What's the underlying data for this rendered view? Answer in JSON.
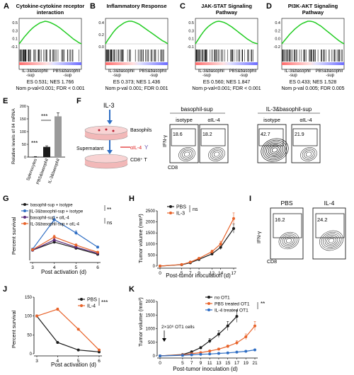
{
  "gsea": [
    {
      "letter": "A",
      "title_lines": [
        "Cytokine-cytokine receptor",
        "interaction"
      ],
      "left": [
        "IL-3&basophil",
        "-sup"
      ],
      "right": [
        "PBS&basophil",
        "-sup"
      ],
      "stats1": "ES 0.531; NES 1.766",
      "stats2": "Nom p-val<0.001; FDR < 0.001",
      "yticks": [
        "0.5",
        "0.3",
        "0.1",
        "-0.1"
      ],
      "curve": [
        0,
        0.08,
        0.16,
        0.23,
        0.3,
        0.36,
        0.41,
        0.45,
        0.49,
        0.51,
        0.53,
        0.52,
        0.5,
        0.47,
        0.44,
        0.4,
        0.36,
        0.31,
        0.26,
        0.21,
        0.16,
        0.11,
        0.07,
        0.03,
        0
      ]
    },
    {
      "letter": "B",
      "title_lines": [
        "Inflammatory Response"
      ],
      "left": [
        "IL-3&basophil",
        "-sup"
      ],
      "right": [
        "PBS&basophil",
        "-sup"
      ],
      "stats1": "ES 0.373; NES 1.436",
      "stats2": "Nom p-val 0.001; FDR 0.001",
      "yticks": [
        "0.4",
        "0.2",
        "0.0"
      ],
      "curve": [
        0,
        0.07,
        0.13,
        0.19,
        0.24,
        0.28,
        0.31,
        0.34,
        0.36,
        0.37,
        0.37,
        0.36,
        0.34,
        0.32,
        0.29,
        0.26,
        0.23,
        0.2,
        0.17,
        0.14,
        0.11,
        0.08,
        0.05,
        0.03,
        0
      ]
    },
    {
      "letter": "C",
      "title_lines": [
        "JAK-STAT Signaling",
        "Pathway"
      ],
      "left": [
        "IL-3&basophil",
        "-sup"
      ],
      "right": [
        "PBS&basophil",
        "-sup"
      ],
      "stats1": "ES 0.560; NES 1.847",
      "stats2": "Nom p-val<0.001; FDR < 0.001",
      "yticks": [
        "0.5",
        "0.3",
        "0.1",
        "-0.1"
      ],
      "curve": [
        0,
        0.1,
        0.2,
        0.29,
        0.37,
        0.43,
        0.48,
        0.52,
        0.55,
        0.56,
        0.55,
        0.53,
        0.5,
        0.46,
        0.42,
        0.37,
        0.32,
        0.27,
        0.22,
        0.17,
        0.12,
        0.08,
        0.04,
        0.02,
        0
      ]
    },
    {
      "letter": "D",
      "title_lines": [
        "PI3K-AKT Signaling",
        "Pathway"
      ],
      "left": [
        "IL-3&basophil",
        "-sup"
      ],
      "right": [
        "PBS&basophil",
        "-sup"
      ],
      "stats1": "ES 0.433; NES 1.528",
      "stats2": "Nom p-val 0.005; FDR 0.005",
      "yticks": [
        "0.4",
        "0.2",
        "0.0",
        "-0.2"
      ],
      "curve": [
        0,
        0.06,
        0.12,
        0.18,
        0.23,
        0.28,
        0.32,
        0.36,
        0.39,
        0.41,
        0.43,
        0.43,
        0.42,
        0.4,
        0.37,
        0.34,
        0.3,
        0.26,
        0.22,
        0.18,
        0.14,
        0.1,
        0.06,
        0.03,
        0
      ]
    }
  ],
  "panel_e": {
    "letter": "E",
    "ylabel": "Relative levels of Il4 mRNA",
    "yticks": [
      "200",
      "150",
      "100",
      "50",
      "0"
    ],
    "bars": [
      {
        "label": "Splenocytes",
        "value": 1
      },
      {
        "label": "PBS&basophil",
        "value": 40
      },
      {
        "label": "IL-3&basophil",
        "value": 160
      }
    ],
    "sig": [
      "***",
      "***"
    ]
  },
  "panel_f": {
    "letter": "F",
    "il3": "IL-3",
    "basophils": "Basophils",
    "supernatant": "Supernatant",
    "ail4": "αIL-4",
    "cd8t": "CD8⁺ T",
    "group1": "basophil-sup",
    "group2": "IL-3&basophil-sup",
    "subs": [
      "isotype",
      "αIL-4",
      "isotype",
      "αIL-4"
    ],
    "values": [
      "18.6",
      "18.2",
      "42.7",
      "21.9"
    ],
    "ylabel": "IFN-γ",
    "xlabel": "CD8"
  },
  "panel_g": {
    "letter": "G",
    "ylabel": "Percent survival",
    "xlabel": "Post activation (d)",
    "xticks": [
      "3",
      "4",
      "5",
      "6"
    ],
    "legend": [
      "basophil-sup + isolype",
      "IL-3&basophil-sup + isotype",
      "basophil-sup + αIL-4",
      "IL-3&basophil-sup + αIL-4"
    ],
    "sig1": "**",
    "sig2": "ns"
  },
  "panel_h": {
    "letter": "H",
    "ylabel": "Tumor volume (mm³)",
    "xlabel": "Post-tumor inoculation (d)",
    "xticks": [
      "0",
      "5",
      "7",
      "9",
      "12",
      "14",
      "17"
    ],
    "yticks": [
      "2500",
      "2000",
      "1500",
      "1000",
      "500",
      "0"
    ],
    "legend": [
      "PBS",
      "IL-3"
    ],
    "sig": "ns"
  },
  "panel_i": {
    "letter": "I",
    "groups": [
      "PBS",
      "IL-4"
    ],
    "values": [
      "16.2",
      "24.2"
    ],
    "ylabel": "IFN-γ",
    "xlabel": "CD8"
  },
  "panel_j": {
    "letter": "J",
    "ylabel": "Percent survival",
    "xlabel": "Post activation (d)",
    "xticks": [
      "3",
      "4",
      "5",
      "6"
    ],
    "yticks": [
      "150",
      "100",
      "50",
      "0"
    ],
    "legend": [
      "PBS",
      "IL-4"
    ],
    "sig": "***"
  },
  "panel_k": {
    "letter": "K",
    "ylabel": "Tumor volume (mm³)",
    "xlabel": "Post-tumor inoculation (d)",
    "xticks": [
      "0",
      "5",
      "7",
      "9",
      "11",
      "13",
      "15",
      "17",
      "19",
      "21"
    ],
    "yticks": [
      "2000",
      "1500",
      "1000",
      "500",
      "0"
    ],
    "legend": [
      "no OT1",
      "PBS treated OT1",
      "IL-4 treated OT1"
    ],
    "sig": "**",
    "annotation": "2×10⁶ OT1 cells"
  },
  "colors": {
    "gsea_line": "#22cc22",
    "black": "#1a1a1a",
    "orange": "#e8632a",
    "blue": "#2f6ec4",
    "purple": "#5a2a7a",
    "gray": "#888888"
  },
  "chart_data": [
    {
      "type": "bar",
      "title": "",
      "categories": [
        "Splenocytes",
        "PBS&basophil",
        "IL-3&basophil"
      ],
      "values": [
        1,
        40,
        160
      ],
      "ylabel": "Relative levels of Il4 mRNA",
      "ylim": [
        0,
        200
      ]
    },
    {
      "type": "line",
      "x": [
        3,
        4,
        5,
        6
      ],
      "xlabel": "Post activation (d)",
      "ylabel": "Percent survival",
      "ylim": [
        0,
        500
      ],
      "series": [
        {
          "name": "basophil-sup + isolype",
          "values": [
            100,
            180,
            120,
            60
          ],
          "color": "#1a1a1a"
        },
        {
          "name": "IL-3&basophil-sup + isotype",
          "values": [
            110,
            400,
            270,
            130
          ],
          "color": "#2f6ec4"
        },
        {
          "name": "basophil-sup + αIL-4",
          "values": [
            100,
            200,
            130,
            70
          ],
          "color": "#5a2a7a"
        },
        {
          "name": "IL-3&basophil-sup + αIL-4",
          "values": [
            105,
            230,
            150,
            80
          ],
          "color": "#e8632a"
        }
      ]
    },
    {
      "type": "line",
      "x": [
        0,
        5,
        7,
        9,
        12,
        14,
        17
      ],
      "xlabel": "Post-tumor inoculation (d)",
      "ylabel": "Tumor volume (mm³)",
      "ylim": [
        0,
        2500
      ],
      "series": [
        {
          "name": "PBS",
          "values": [
            0,
            60,
            150,
            300,
            550,
            850,
            1700
          ],
          "color": "#1a1a1a"
        },
        {
          "name": "IL-3",
          "values": [
            0,
            70,
            180,
            350,
            650,
            1000,
            2150
          ],
          "color": "#e8632a"
        }
      ]
    },
    {
      "type": "line",
      "x": [
        3,
        4,
        5,
        6
      ],
      "xlabel": "Post activation (d)",
      "ylabel": "Percent survival",
      "ylim": [
        0,
        150
      ],
      "series": [
        {
          "name": "PBS",
          "values": [
            100,
            30,
            10,
            5
          ],
          "color": "#1a1a1a"
        },
        {
          "name": "IL-4",
          "values": [
            100,
            118,
            65,
            10
          ],
          "color": "#e8632a"
        }
      ]
    },
    {
      "type": "line",
      "x": [
        0,
        5,
        7,
        9,
        11,
        13,
        15,
        17,
        19,
        21
      ],
      "xlabel": "Post-tumor inoculation (d)",
      "ylabel": "Tumor volume (mm³)",
      "ylim": [
        0,
        2000
      ],
      "series": [
        {
          "name": "no OT1",
          "values": [
            0,
            50,
            150,
            300,
            550,
            800,
            1100,
            1450,
            null,
            null
          ],
          "color": "#1a1a1a"
        },
        {
          "name": "PBS treated OT1",
          "values": [
            0,
            40,
            80,
            120,
            180,
            250,
            350,
            480,
            700,
            1100
          ],
          "color": "#e8632a"
        },
        {
          "name": "IL-4 treated OT1",
          "values": [
            0,
            20,
            40,
            60,
            70,
            90,
            110,
            140,
            170,
            220
          ],
          "color": "#2f6ec4"
        }
      ]
    }
  ]
}
